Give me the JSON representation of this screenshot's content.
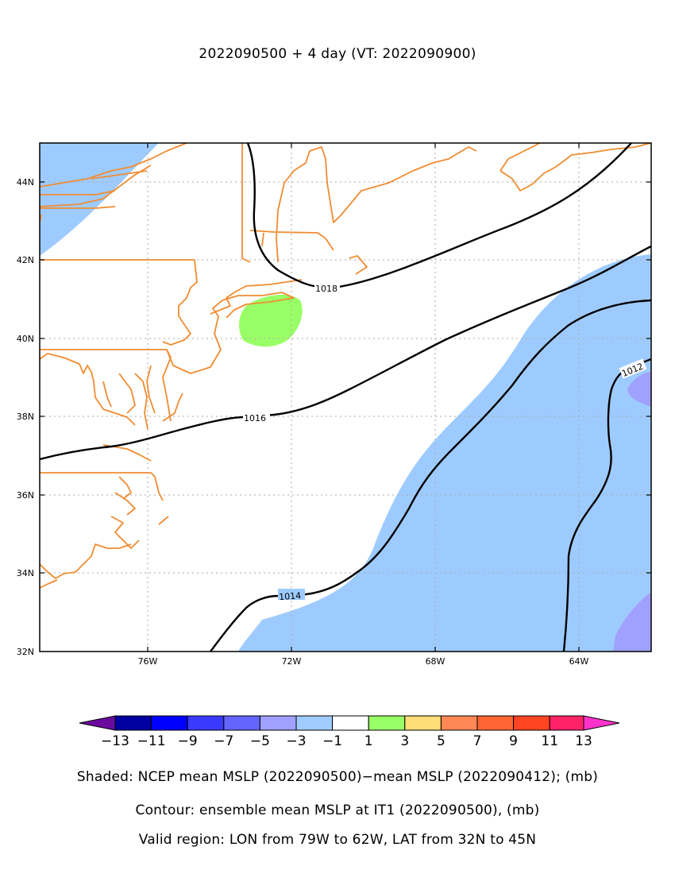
{
  "title": "2022090500 + 4 day (VT: 2022090900)",
  "axes": {
    "lat_labels": [
      "44N",
      "42N",
      "40N",
      "38N",
      "36N",
      "34N",
      "32N"
    ],
    "lon_labels": [
      "76W",
      "72W",
      "68W",
      "64W"
    ]
  },
  "contours": {
    "labels": [
      "1018",
      "1016",
      "1014",
      "1012"
    ],
    "color": "#000000"
  },
  "colorbar": {
    "tick_labels": [
      "−13",
      "−11",
      "−9",
      "−7",
      "−5",
      "−3",
      "−1",
      "1",
      "3",
      "5",
      "7",
      "9",
      "11",
      "13"
    ],
    "colors": [
      "#6a0a9e",
      "#0000a0",
      "#0000ff",
      "#3a3aff",
      "#6464ff",
      "#a0a0ff",
      "#a0ccff",
      "#ffffff",
      "#99ff66",
      "#ffdd77",
      "#ff8855",
      "#ff6633",
      "#ff4422",
      "#ff2266",
      "#ff33cc"
    ]
  },
  "captions": {
    "shaded": "Shaded: NCEP mean MSLP (2022090500)−mean MSLP (2022090412); (mb)",
    "contour": "Contour: ensemble mean MSLP at IT1 (2022090500), (mb)",
    "region": "Valid region: LON from 79W to 62W, LAT from 32N to 45N"
  },
  "colors": {
    "coastline": "#f08c32",
    "shade_neg1_3": "#9ecbff",
    "shade_pos1_3": "#99ff66",
    "shade_neg3_5": "#a0a0ff"
  }
}
